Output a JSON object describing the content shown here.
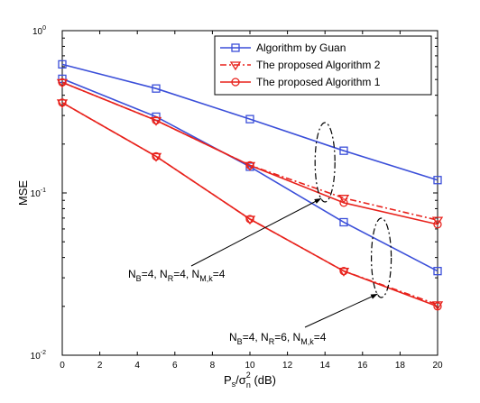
{
  "chart_data": {
    "type": "line",
    "title": "",
    "xlabel": {
      "base": "P",
      "sub1": "s",
      "mid": "/σ",
      "sup": "2",
      "sub2": "n",
      "unit": " (dB)"
    },
    "ylabel": "MSE",
    "xlim": [
      0,
      20
    ],
    "ylim": [
      0.01,
      1
    ],
    "yscale": "log",
    "grid": false,
    "legend_position": "top-right",
    "x": [
      0,
      5,
      10,
      15,
      20
    ],
    "x_ticks": [
      "0",
      "2",
      "4",
      "6",
      "8",
      "10",
      "12",
      "14",
      "16",
      "18",
      "20"
    ],
    "y_ticks": [
      {
        "base": "10",
        "exp": "0"
      },
      {
        "base": "10",
        "exp": "-1"
      },
      {
        "base": "10",
        "exp": "-2"
      }
    ],
    "series": [
      {
        "name": "Algorithm by Guan",
        "config": "NB=4, NR=4",
        "color": "#3b4fd9",
        "marker": "square",
        "dash": "solid",
        "values": [
          0.62,
          0.44,
          0.285,
          0.182,
          0.12
        ]
      },
      {
        "name": "The proposed Algorithm 2",
        "config": "NB=4, NR=4",
        "color": "#e8221c",
        "marker": "triangle-down",
        "dash": "dashdot",
        "values": [
          0.48,
          0.28,
          0.148,
          0.093,
          0.068
        ]
      },
      {
        "name": "The proposed Algorithm 1",
        "config": "NB=4, NR=4",
        "color": "#e8221c",
        "marker": "circle",
        "dash": "solid",
        "values": [
          0.48,
          0.28,
          0.148,
          0.087,
          0.064
        ]
      },
      {
        "name": "Algorithm by Guan",
        "config": "NB=4, NR=6",
        "color": "#3b4fd9",
        "marker": "square",
        "dash": "solid",
        "values": [
          0.505,
          0.295,
          0.145,
          0.066,
          0.033
        ]
      },
      {
        "name": "The proposed Algorithm 2",
        "config": "NB=4, NR=6",
        "color": "#e8221c",
        "marker": "triangle-down",
        "dash": "dashdot",
        "values": [
          0.36,
          0.168,
          0.069,
          0.033,
          0.0205
        ]
      },
      {
        "name": "The proposed Algorithm 1",
        "config": "NB=4, NR=6",
        "color": "#e8221c",
        "marker": "circle",
        "dash": "solid",
        "values": [
          0.36,
          0.168,
          0.069,
          0.033,
          0.02
        ]
      }
    ],
    "legend": [
      {
        "label": "Algorithm by Guan",
        "color": "#3b4fd9",
        "marker": "square",
        "dash": "solid"
      },
      {
        "label": "The proposed Algorithm 2",
        "color": "#e8221c",
        "marker": "triangle-down",
        "dash": "dashdot"
      },
      {
        "label": "The proposed Algorithm 1",
        "color": "#e8221c",
        "marker": "circle",
        "dash": "solid"
      }
    ],
    "annotations": [
      {
        "text_parts": [
          "N",
          "B",
          "=4, N",
          "R",
          "=4, N",
          "M,k",
          "=4"
        ],
        "ellipse_x": 14,
        "ellipse_y": 0.15
      },
      {
        "text_parts": [
          "N",
          "B",
          "=4, N",
          "R",
          "=6, N",
          "M,k",
          "=4"
        ],
        "ellipse_x": 17,
        "ellipse_y": 0.033
      }
    ]
  }
}
